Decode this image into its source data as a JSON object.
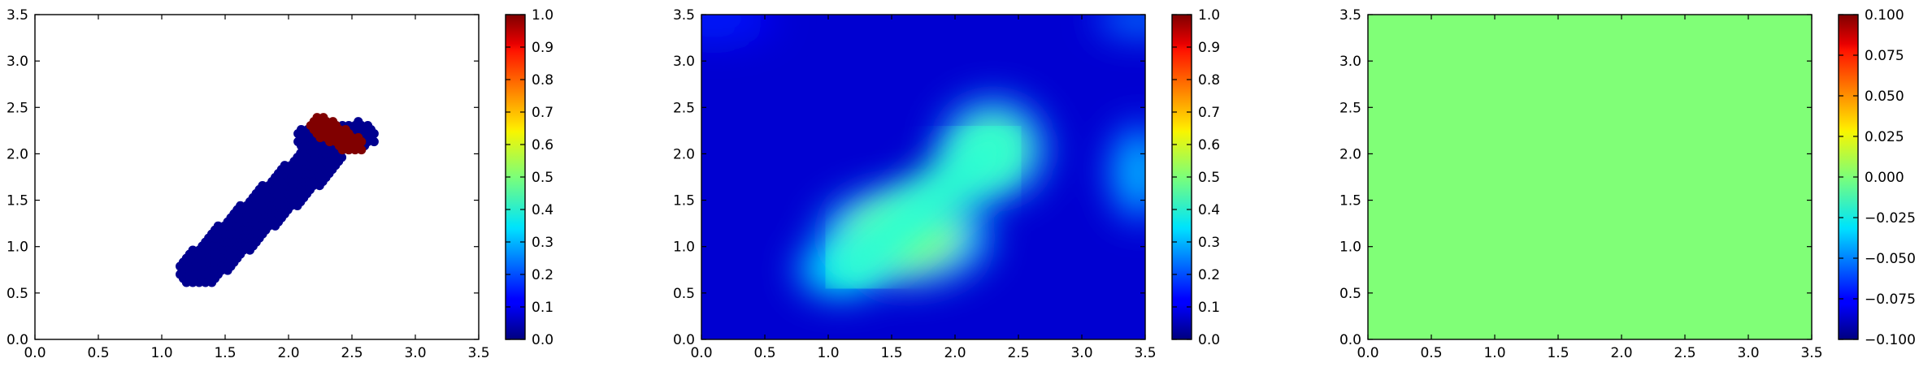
{
  "chart_data": [
    {
      "type": "scatter",
      "title": "",
      "xlabel": "",
      "ylabel": "",
      "xlim": [
        0.0,
        3.5
      ],
      "ylim": [
        0.0,
        3.5
      ],
      "x_ticks": [
        "0.0",
        "0.5",
        "1.0",
        "1.5",
        "2.0",
        "2.5",
        "3.0",
        "3.5"
      ],
      "y_ticks": [
        "0.0",
        "0.5",
        "1.0",
        "1.5",
        "2.0",
        "2.5",
        "3.0",
        "3.5"
      ],
      "colormap": "jet",
      "grid": false,
      "colorbar": {
        "range": [
          0.0,
          1.0
        ],
        "ticks": [
          "0.0",
          "0.1",
          "0.2",
          "0.3",
          "0.4",
          "0.5",
          "0.6",
          "0.7",
          "0.8",
          "0.9",
          "1.0"
        ]
      },
      "clusters": [
        {
          "description": "diagonal band of points, value 0",
          "value": 0.0,
          "from": [
            1.3,
            0.75
          ],
          "to": [
            2.25,
            1.95
          ],
          "half_width": 0.18
        },
        {
          "description": "blue cap at top end, value 0",
          "value": 0.0,
          "from": [
            2.2,
            2.15
          ],
          "to": [
            2.55,
            2.2
          ],
          "half_width": 0.15
        },
        {
          "description": "red cluster, value 1",
          "value": 1.0,
          "from": [
            2.25,
            2.3
          ],
          "to": [
            2.5,
            2.1
          ],
          "half_width": 0.1
        }
      ],
      "point_color_low": "#00008f",
      "point_color_high": "#800000"
    },
    {
      "type": "heatmap",
      "title": "",
      "xlabel": "",
      "ylabel": "",
      "xlim": [
        0.0,
        3.5
      ],
      "ylim": [
        0.0,
        3.5
      ],
      "x_ticks": [
        "0.0",
        "0.5",
        "1.0",
        "1.5",
        "2.0",
        "2.5",
        "3.0",
        "3.5"
      ],
      "y_ticks": [
        "0.0",
        "0.5",
        "1.0",
        "1.5",
        "2.0",
        "2.5",
        "3.0",
        "3.5"
      ],
      "colormap": "jet",
      "grid": false,
      "background_value": 0.08,
      "blobs": [
        {
          "x": 1.6,
          "y": 1.1,
          "value": 0.52,
          "rx": 0.55,
          "ry": 0.42
        },
        {
          "x": 2.3,
          "y": 2.05,
          "value": 0.45,
          "rx": 0.35,
          "ry": 0.45
        },
        {
          "x": 1.1,
          "y": 0.75,
          "value": 0.38,
          "rx": 0.3,
          "ry": 0.25
        },
        {
          "x": 3.45,
          "y": 1.8,
          "value": 0.3,
          "rx": 0.2,
          "ry": 0.45
        },
        {
          "x": 3.45,
          "y": 3.45,
          "value": 0.25,
          "rx": 0.3,
          "ry": 0.15
        },
        {
          "x": 0.1,
          "y": 3.45,
          "value": 0.16,
          "rx": 0.4,
          "ry": 0.2
        }
      ],
      "colorbar": {
        "range": [
          0.0,
          1.0
        ],
        "ticks": [
          "0.0",
          "0.1",
          "0.2",
          "0.3",
          "0.4",
          "0.5",
          "0.6",
          "0.7",
          "0.8",
          "0.9",
          "1.0"
        ]
      }
    },
    {
      "type": "heatmap",
      "title": "",
      "xlabel": "",
      "ylabel": "",
      "xlim": [
        0.0,
        3.5
      ],
      "ylim": [
        0.0,
        3.5
      ],
      "x_ticks": [
        "0.0",
        "0.5",
        "1.0",
        "1.5",
        "2.0",
        "2.5",
        "3.0",
        "3.5"
      ],
      "y_ticks": [
        "0.0",
        "0.5",
        "1.0",
        "1.5",
        "2.0",
        "2.5",
        "3.0",
        "3.5"
      ],
      "colormap": "jet",
      "grid": false,
      "uniform_value": 0.0,
      "fill_color": "#80ff77",
      "colorbar": {
        "range": [
          -0.1,
          0.1
        ],
        "ticks": [
          "−0.100",
          "−0.075",
          "−0.050",
          "−0.025",
          "0.000",
          "0.025",
          "0.050",
          "0.075",
          "0.100"
        ]
      }
    }
  ]
}
